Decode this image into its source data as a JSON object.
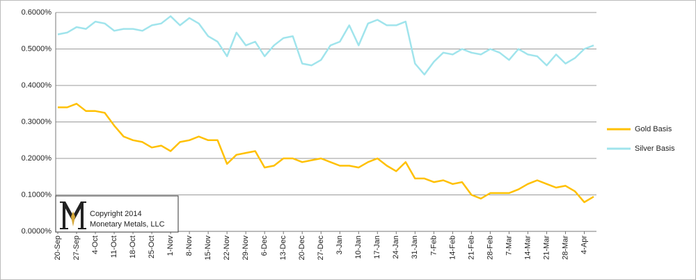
{
  "chart_data": {
    "type": "line",
    "categories": [
      "20-Sep",
      null,
      "27-Sep",
      null,
      "4-Oct",
      null,
      "11-Oct",
      null,
      "18-Oct",
      null,
      "25-Oct",
      null,
      "1-Nov",
      null,
      "8-Nov",
      null,
      "15-Nov",
      null,
      "22-Nov",
      null,
      "29-Nov",
      null,
      "6-Dec",
      null,
      "13-Dec",
      null,
      "20-Dec",
      null,
      "27-Dec",
      null,
      "3-Jan",
      null,
      "10-Jan",
      null,
      "17-Jan",
      null,
      "24-Jan",
      null,
      "31-Jan",
      null,
      "7-Feb",
      null,
      "14-Feb",
      null,
      "21-Feb",
      null,
      "28-Feb",
      null,
      "7-Mar",
      null,
      "14-Mar",
      null,
      "21-Mar",
      null,
      "28-Mar",
      null,
      "4-Apr",
      null
    ],
    "series": [
      {
        "name": "Gold Basis",
        "color": "#ffc000",
        "values": [
          0.34,
          0.34,
          0.35,
          0.33,
          0.33,
          0.325,
          0.29,
          0.26,
          0.25,
          0.245,
          0.23,
          0.235,
          0.22,
          0.245,
          0.25,
          0.26,
          0.25,
          0.25,
          0.185,
          0.21,
          0.215,
          0.22,
          0.175,
          0.18,
          0.2,
          0.2,
          0.19,
          0.195,
          0.2,
          0.19,
          0.18,
          0.18,
          0.175,
          0.19,
          0.2,
          0.18,
          0.165,
          0.19,
          0.145,
          0.145,
          0.135,
          0.14,
          0.13,
          0.135,
          0.1,
          0.09,
          0.105,
          0.105,
          0.105,
          0.115,
          0.13,
          0.14,
          0.13,
          0.12,
          0.125,
          0.11,
          0.08,
          0.095
        ]
      },
      {
        "name": "Silver Basis",
        "color": "#a0e4ec",
        "values": [
          0.54,
          0.545,
          0.56,
          0.555,
          0.575,
          0.57,
          0.55,
          0.555,
          0.555,
          0.55,
          0.565,
          0.57,
          0.59,
          0.565,
          0.585,
          0.57,
          0.535,
          0.52,
          0.48,
          0.545,
          0.51,
          0.52,
          0.48,
          0.51,
          0.53,
          0.535,
          0.46,
          0.455,
          0.47,
          0.51,
          0.52,
          0.565,
          0.51,
          0.57,
          0.58,
          0.565,
          0.565,
          0.575,
          0.46,
          0.43,
          0.465,
          0.49,
          0.485,
          0.5,
          0.49,
          0.485,
          0.5,
          0.49,
          0.47,
          0.5,
          0.485,
          0.48,
          0.455,
          0.485,
          0.46,
          0.475,
          0.5,
          0.51
        ]
      }
    ],
    "ylim": [
      0,
      0.6
    ],
    "yticks": [
      {
        "value": 0,
        "label": "0.0000%"
      },
      {
        "value": 0.1,
        "label": "0.1000%"
      },
      {
        "value": 0.2,
        "label": "0.2000%"
      },
      {
        "value": 0.3,
        "label": "0.3000%"
      },
      {
        "value": 0.4,
        "label": "0.4000%"
      },
      {
        "value": 0.5,
        "label": "0.5000%"
      },
      {
        "value": 0.6,
        "label": "0.6000%"
      }
    ],
    "grid": true,
    "legend": "right",
    "annotations": [
      "Copyright 2014",
      "Monetary Metals, LLC"
    ]
  }
}
